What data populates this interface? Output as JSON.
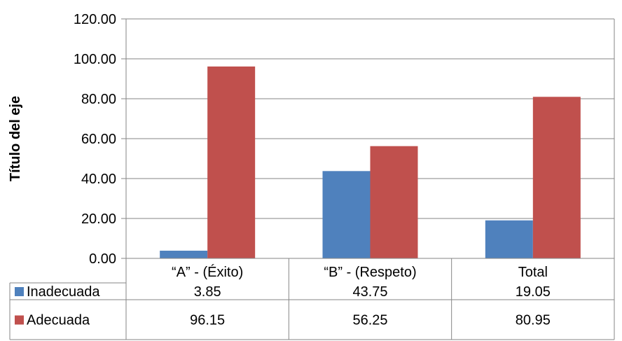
{
  "chart_data": {
    "type": "bar",
    "ylabel": "Título del eje",
    "ylim": [
      0,
      120
    ],
    "y_ticks": [
      "0.00",
      "20.00",
      "40.00",
      "60.00",
      "80.00",
      "100.00",
      "120.00"
    ],
    "grid": true,
    "categories": [
      "“A” - (Éxito)",
      "“B” - (Respeto)",
      "Total"
    ],
    "series": [
      {
        "name": "Inadecuada",
        "color": "#4F81BD",
        "values": [
          3.85,
          43.75,
          19.05
        ],
        "labels": [
          "3.85",
          "43.75",
          "19.05"
        ]
      },
      {
        "name": "Adecuada",
        "color": "#C0504D",
        "values": [
          96.15,
          56.25,
          80.95
        ],
        "labels": [
          "96.15",
          "56.25",
          "80.95"
        ]
      }
    ],
    "data_table": true
  }
}
